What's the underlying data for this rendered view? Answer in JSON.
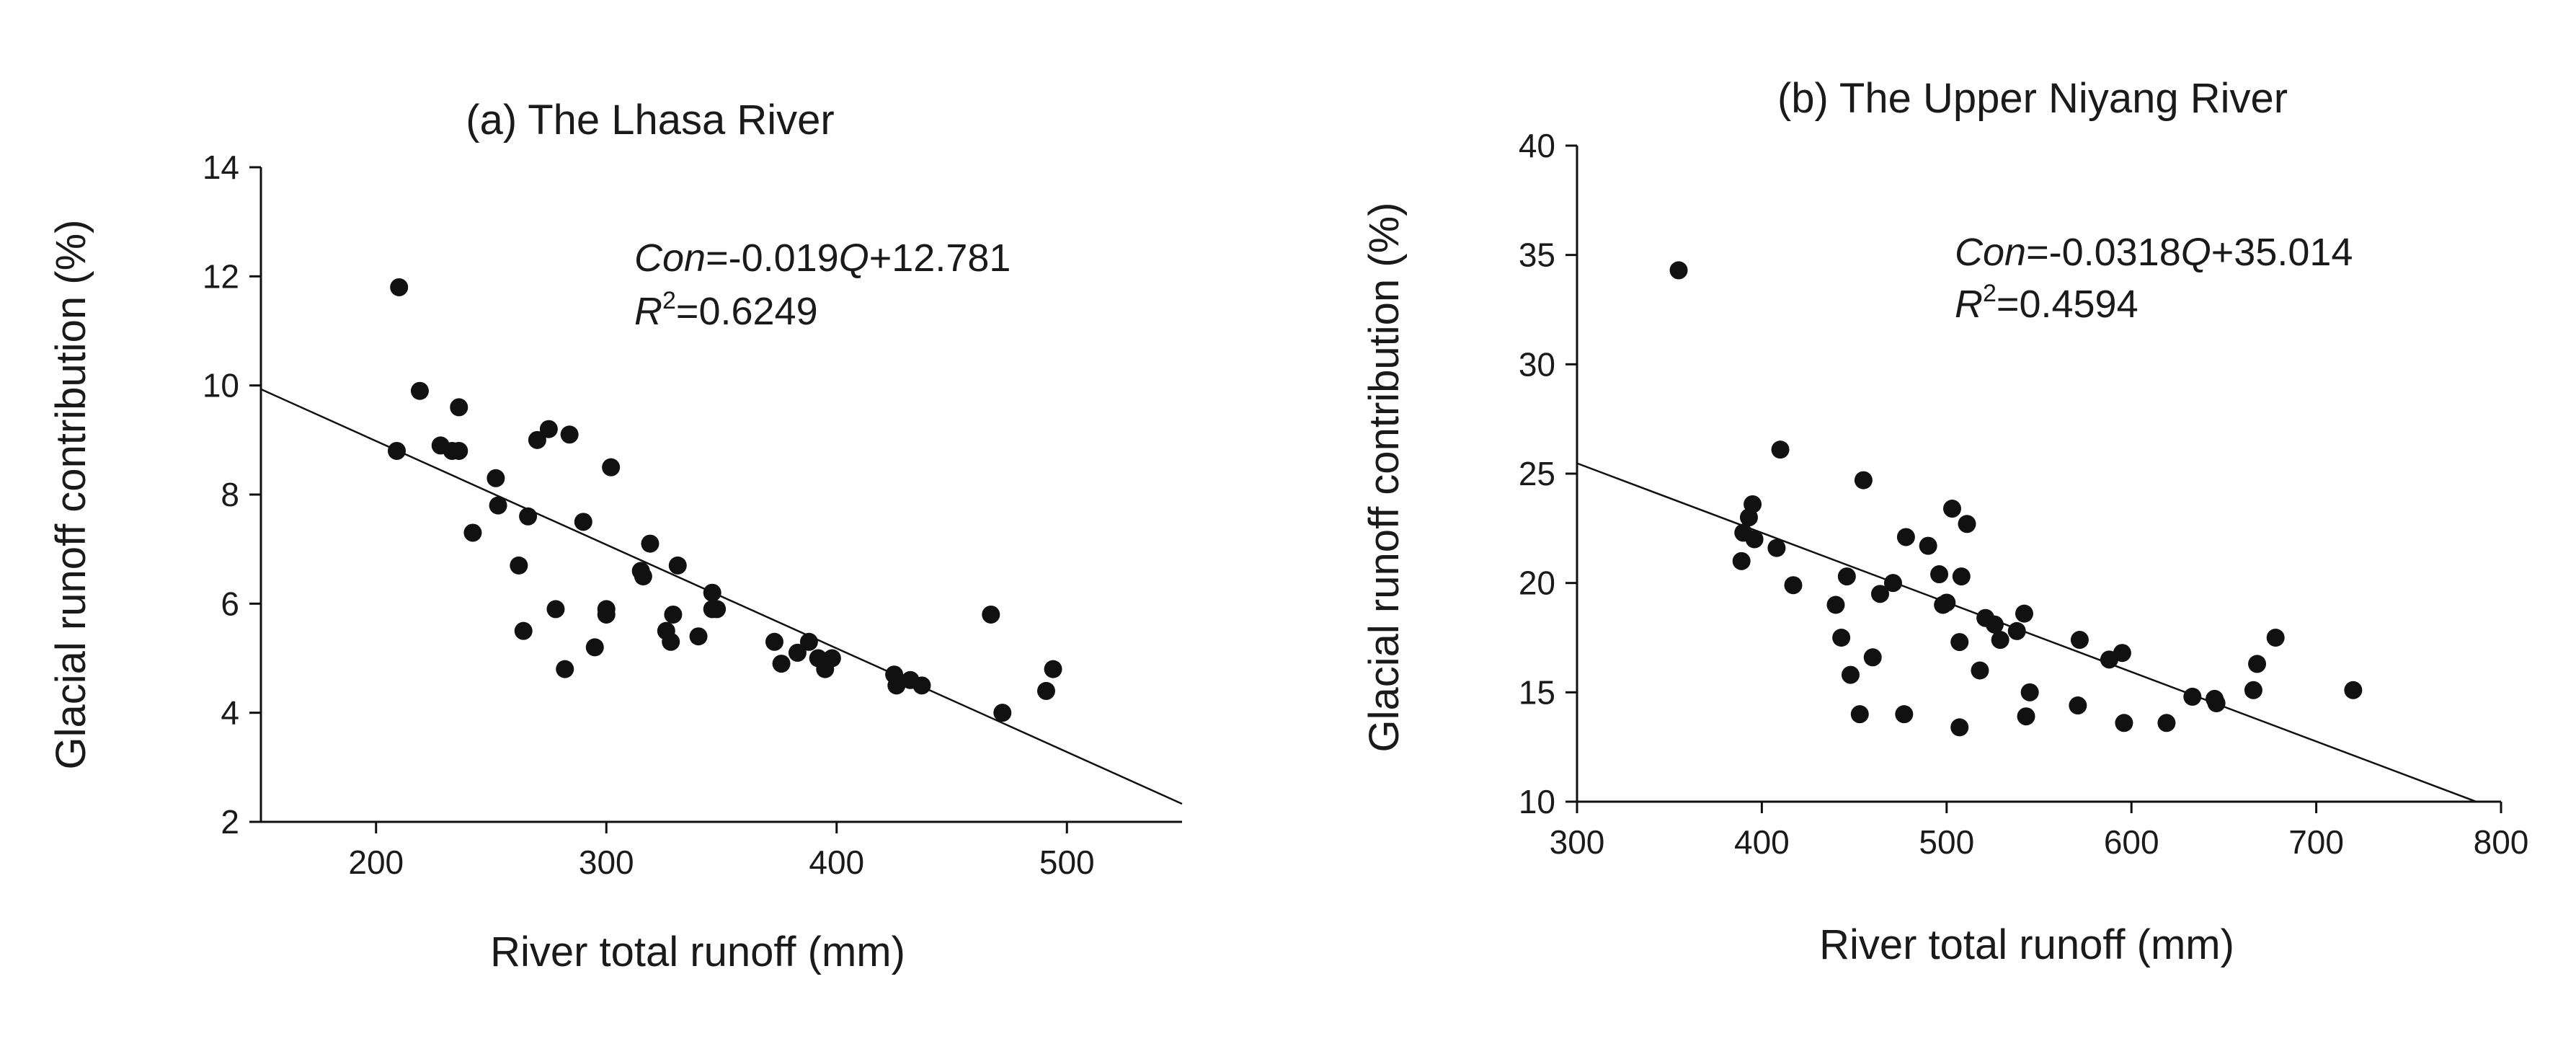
{
  "chart_data": [
    {
      "type": "scatter",
      "title": "(a) The  Lhasa River",
      "xlabel": "River total runoff (mm)",
      "ylabel": "Glacial runoff contribution (%)",
      "xlim": [
        150,
        550
      ],
      "ylim": [
        2,
        14
      ],
      "xticks": [
        "200",
        "300",
        "400",
        "500"
      ],
      "yticks": [
        "2",
        "4",
        "6",
        "8",
        "10",
        "12",
        "14"
      ],
      "grid": false,
      "fit": {
        "slope": -0.019,
        "intercept": 12.781
      },
      "equation": {
        "prefix_italic": "Con",
        "middle": "=-0.019",
        "var_italic": "Q",
        "suffix": "+12.781"
      },
      "r2": {
        "r": "R",
        "sup": "2",
        "value": "=0.6249"
      },
      "points": [
        [
          210,
          11.8
        ],
        [
          219,
          9.9
        ],
        [
          228,
          8.9
        ],
        [
          233,
          8.8
        ],
        [
          236,
          9.6
        ],
        [
          236,
          8.8
        ],
        [
          209,
          8.8
        ],
        [
          252,
          8.3
        ],
        [
          253,
          7.8
        ],
        [
          242,
          7.3
        ],
        [
          262,
          6.7
        ],
        [
          266,
          7.6
        ],
        [
          264,
          5.5
        ],
        [
          270,
          9.0
        ],
        [
          275,
          9.2
        ],
        [
          278,
          5.9
        ],
        [
          282,
          4.8
        ],
        [
          284,
          9.1
        ],
        [
          290,
          7.5
        ],
        [
          295,
          5.2
        ],
        [
          300,
          5.9
        ],
        [
          300,
          5.8
        ],
        [
          302,
          8.5
        ],
        [
          315,
          6.6
        ],
        [
          316,
          6.5
        ],
        [
          319,
          7.1
        ],
        [
          326,
          5.5
        ],
        [
          329,
          5.8
        ],
        [
          328,
          5.3
        ],
        [
          331,
          6.7
        ],
        [
          340,
          5.4
        ],
        [
          346,
          6.2
        ],
        [
          348,
          5.9
        ],
        [
          346,
          5.9
        ],
        [
          373,
          5.3
        ],
        [
          376,
          4.9
        ],
        [
          383,
          5.1
        ],
        [
          388,
          5.3
        ],
        [
          392,
          5.0
        ],
        [
          395,
          4.8
        ],
        [
          398,
          5.0
        ],
        [
          425,
          4.7
        ],
        [
          426,
          4.5
        ],
        [
          432,
          4.6
        ],
        [
          437,
          4.5
        ],
        [
          467,
          5.8
        ],
        [
          472,
          4.0
        ],
        [
          491,
          4.4
        ],
        [
          494,
          4.8
        ]
      ]
    },
    {
      "type": "scatter",
      "title": "(b) The Upper Niyang River",
      "xlabel": "River total runoff (mm)",
      "ylabel": "Glacial runoff contribution (%)",
      "xlim": [
        300,
        800
      ],
      "ylim": [
        10,
        40
      ],
      "xticks": [
        "300",
        "400",
        "500",
        "600",
        "700",
        "800"
      ],
      "yticks": [
        "10",
        "15",
        "20",
        "25",
        "30",
        "35",
        "40"
      ],
      "grid": false,
      "fit": {
        "slope": -0.0318,
        "intercept": 35.014
      },
      "equation": {
        "prefix_italic": "Con",
        "middle": "=-0.0318",
        "var_italic": "Q",
        "suffix": "+35.014"
      },
      "r2": {
        "r": "R",
        "sup": "2",
        "value": "=0.4594"
      },
      "points": [
        [
          355,
          34.3
        ],
        [
          389,
          21.0
        ],
        [
          390,
          22.3
        ],
        [
          393,
          23.0
        ],
        [
          395,
          23.6
        ],
        [
          396,
          22.0
        ],
        [
          408,
          21.6
        ],
        [
          410,
          26.1
        ],
        [
          417,
          19.9
        ],
        [
          440,
          19.0
        ],
        [
          443,
          17.5
        ],
        [
          446,
          20.3
        ],
        [
          448,
          15.8
        ],
        [
          453,
          14.0
        ],
        [
          455,
          24.7
        ],
        [
          460,
          16.6
        ],
        [
          464,
          19.5
        ],
        [
          471,
          20.0
        ],
        [
          477,
          14.0
        ],
        [
          478,
          22.1
        ],
        [
          490,
          21.7
        ],
        [
          496,
          20.4
        ],
        [
          498,
          19.0
        ],
        [
          500,
          19.1
        ],
        [
          503,
          23.4
        ],
        [
          507,
          13.4
        ],
        [
          507,
          17.3
        ],
        [
          508,
          20.3
        ],
        [
          511,
          22.7
        ],
        [
          518,
          16.0
        ],
        [
          521,
          18.4
        ],
        [
          526,
          18.1
        ],
        [
          529,
          17.4
        ],
        [
          538,
          17.8
        ],
        [
          542,
          18.6
        ],
        [
          543,
          13.9
        ],
        [
          545,
          15.0
        ],
        [
          571,
          14.4
        ],
        [
          572,
          17.4
        ],
        [
          588,
          16.5
        ],
        [
          595,
          16.8
        ],
        [
          596,
          13.6
        ],
        [
          619,
          13.6
        ],
        [
          633,
          14.8
        ],
        [
          645,
          14.7
        ],
        [
          646,
          14.5
        ],
        [
          666,
          15.1
        ],
        [
          668,
          16.3
        ],
        [
          678,
          17.5
        ],
        [
          720,
          15.1
        ]
      ]
    }
  ]
}
